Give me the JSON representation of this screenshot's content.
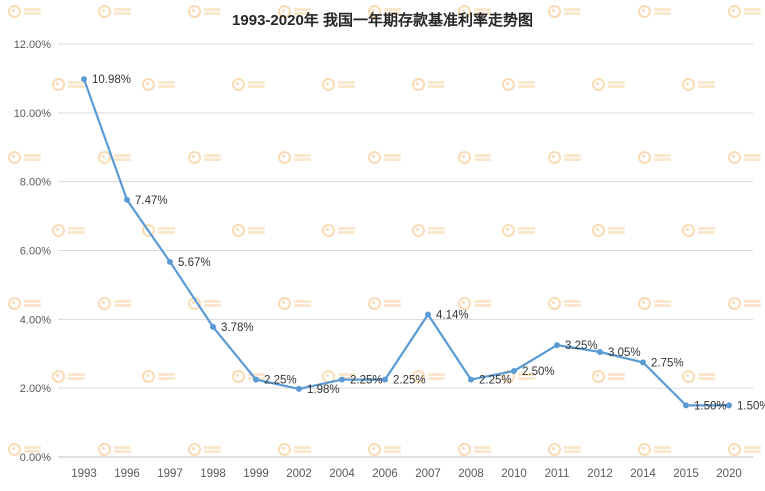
{
  "title": "1993-2020年 我国一年期存款基准利率走势图",
  "chart_data": {
    "type": "line",
    "title": "1993-2020年 我国一年期存款基准利率走势图",
    "xlabel": "",
    "ylabel": "",
    "categories": [
      "1993",
      "1996",
      "1997",
      "1998",
      "1999",
      "2002",
      "2004",
      "2006",
      "2007",
      "2008",
      "2010",
      "2011",
      "2012",
      "2014",
      "2015",
      "2020"
    ],
    "values": [
      10.98,
      7.47,
      5.67,
      3.78,
      2.25,
      1.98,
      2.25,
      2.25,
      4.14,
      2.25,
      2.5,
      3.25,
      3.05,
      2.75,
      1.5,
      1.5
    ],
    "point_labels": [
      "10.98%",
      "7.47%",
      "5.67%",
      "3.78%",
      "2.25%",
      "1.98%",
      "2.25%",
      "2.25%",
      "4.14%",
      "2.25%",
      "2.50%",
      "3.25%",
      "3.05%",
      "2.75%",
      "1.50%",
      "1.50%"
    ],
    "ylim": [
      0,
      12
    ],
    "ytick_step": 2,
    "ytick_labels": [
      "0.00%",
      "2.00%",
      "4.00%",
      "6.00%",
      "8.00%",
      "10.00%",
      "12.00%"
    ],
    "grid": true,
    "legend": "none",
    "colors": {
      "line": "#5B9BD5",
      "marker": "#5B9BD5",
      "grid": "#D9D9D9",
      "axis": "#BFBFBF",
      "tick_text": "#595959",
      "label_text": "#333333",
      "watermark": "#F2A13C"
    }
  }
}
